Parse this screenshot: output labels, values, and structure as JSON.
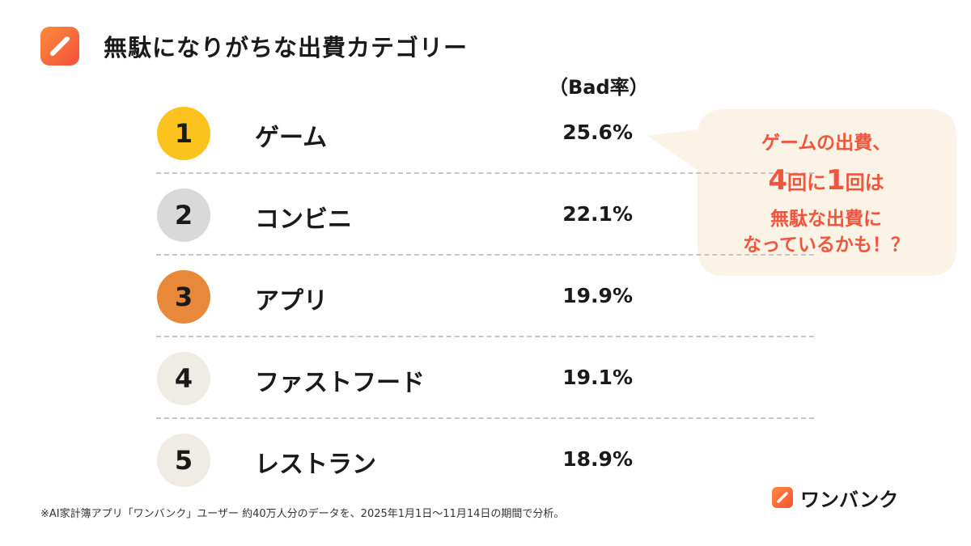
{
  "header": {
    "title": "無駄になりがちな出費カテゴリー",
    "column_header": "（Bad率）"
  },
  "chart_data": {
    "type": "table",
    "title": "無駄になりがちな出費カテゴリー",
    "value_label": "（Bad率）",
    "rows": [
      {
        "rank": "1",
        "category": "ゲーム",
        "value": 25.6,
        "value_text": "25.6%",
        "badge_color": "#fcc31f",
        "badge_text_color": "#1a1a1a"
      },
      {
        "rank": "2",
        "category": "コンビニ",
        "value": 22.1,
        "value_text": "22.1%",
        "badge_color": "#d9d9d9",
        "badge_text_color": "#1a1a1a"
      },
      {
        "rank": "3",
        "category": "アプリ",
        "value": 19.9,
        "value_text": "19.9%",
        "badge_color": "#e8893a",
        "badge_text_color": "#1a1a1a"
      },
      {
        "rank": "4",
        "category": "ファストフード",
        "value": 19.1,
        "value_text": "19.1%",
        "badge_color": "#efebe5",
        "badge_text_color": "#1a1a1a"
      },
      {
        "rank": "5",
        "category": "レストラン",
        "value": 18.9,
        "value_text": "18.9%",
        "badge_color": "#efebe5",
        "badge_text_color": "#1a1a1a"
      }
    ]
  },
  "callout": {
    "line1": "ゲームの出費、",
    "line2_num1": "4",
    "line2_text1": "回に",
    "line2_num2": "1",
    "line2_text2": "回は",
    "line3": "無駄な出費に",
    "line4": "なっているかも！？",
    "background_color": "#fbf4e6",
    "text_color": "#f2553e"
  },
  "footnote": "※AI家計簿アプリ「ワンバンク」ユーザー 約40万人分のデータを、2025年1月1日〜11月14日の期間で分析。",
  "brand": {
    "name": "ワンバンク",
    "icon": "pencil-icon",
    "accent_color": "#f2503a"
  }
}
